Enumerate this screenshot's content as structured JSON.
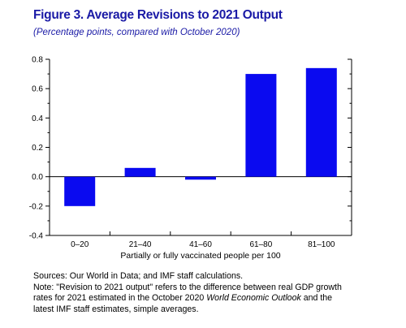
{
  "header": {
    "title": "Figure 3. Average Revisions to 2021 Output",
    "subtitle": "(Percentage points, compared with October 2020)"
  },
  "colors": {
    "bar": "#0a0af0",
    "title": "#1a1aa6"
  },
  "chart_data": {
    "type": "bar",
    "categories": [
      "0–20",
      "21–40",
      "41–60",
      "61–80",
      "81–100"
    ],
    "values": [
      -0.2,
      0.06,
      -0.02,
      0.7,
      0.74
    ],
    "xlabel": "Partially or fully vaccinated people per 100",
    "ylabel": "",
    "ylim": [
      -0.4,
      0.8
    ],
    "yticks": [
      -0.4,
      -0.2,
      0.0,
      0.2,
      0.4,
      0.6,
      0.8
    ],
    "ytick_labels": [
      "-0.4",
      "-0.2",
      "0.0",
      "0.2",
      "0.4",
      "0.6",
      "0.8"
    ],
    "grid": false,
    "legend": "none"
  },
  "notes": {
    "sources": "Sources: Our World in Data; and IMF staff calculations.",
    "note_line1": "Note: \"Revision to 2021 output\" refers to the difference between real GDP growth",
    "note_line2_pre": "rates for 2021 estimated in the October 2020 ",
    "note_line2_ital": "World Economic Outlook",
    "note_line2_post": " and the",
    "note_line3": "latest IMF staff estimates, simple averages."
  }
}
